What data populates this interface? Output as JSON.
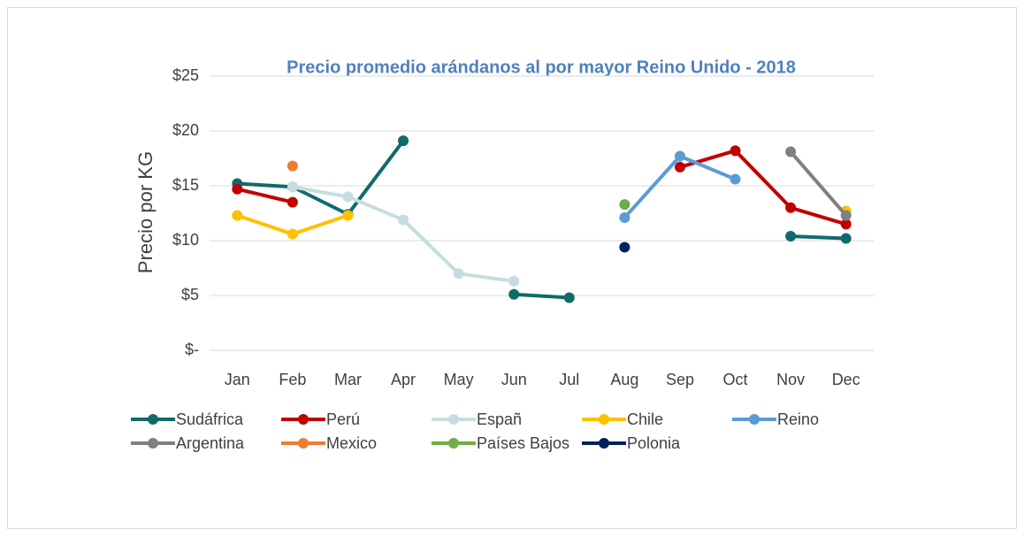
{
  "chart_data": {
    "type": "line",
    "title": "Precio promedio arándanos al por mayor Reino Unido - 2018",
    "y_label": "Precio por KG",
    "categories": [
      "Jan",
      "Feb",
      "Mar",
      "Apr",
      "May",
      "Jun",
      "Jul",
      "Aug",
      "Sep",
      "Oct",
      "Nov",
      "Dec"
    ],
    "ylim": [
      0,
      25
    ],
    "yticks": [
      {
        "value": 0,
        "label": "$-"
      },
      {
        "value": 5,
        "label": "$5"
      },
      {
        "value": 10,
        "label": "$10"
      },
      {
        "value": 15,
        "label": "$15"
      },
      {
        "value": 20,
        "label": "$20"
      },
      {
        "value": 25,
        "label": "$25"
      }
    ],
    "grid": true,
    "legend": "bottom",
    "series": [
      {
        "name": "Sudáfrica",
        "color": "#0f6b6b",
        "values": [
          15.2,
          14.9,
          12.4,
          19.1,
          null,
          5.1,
          4.8,
          null,
          null,
          null,
          10.4,
          10.2
        ]
      },
      {
        "name": "Perú",
        "color": "#c00000",
        "values": [
          14.7,
          13.5,
          null,
          null,
          null,
          null,
          null,
          null,
          16.7,
          18.2,
          13.0,
          11.5
        ]
      },
      {
        "name": "Españ",
        "color": "#c5dde0",
        "values": [
          null,
          14.9,
          14.0,
          11.9,
          7.0,
          6.3,
          null,
          null,
          null,
          null,
          null,
          null
        ]
      },
      {
        "name": "Chile",
        "color": "#ffc000",
        "values": [
          12.3,
          10.6,
          12.3,
          null,
          null,
          null,
          null,
          null,
          null,
          null,
          null,
          12.7
        ]
      },
      {
        "name": "Reino",
        "color": "#5b9bd5",
        "values": [
          null,
          null,
          null,
          null,
          null,
          null,
          null,
          12.1,
          17.7,
          15.6,
          null,
          null
        ]
      },
      {
        "name": "Argentina",
        "color": "#808080",
        "values": [
          null,
          null,
          null,
          null,
          null,
          null,
          null,
          null,
          null,
          null,
          18.1,
          12.3
        ]
      },
      {
        "name": "Mexico",
        "color": "#ed7d31",
        "values": [
          null,
          16.8,
          null,
          null,
          null,
          null,
          null,
          null,
          null,
          null,
          null,
          null
        ]
      },
      {
        "name": "Países Bajos",
        "color": "#70ad47",
        "values": [
          null,
          null,
          null,
          null,
          null,
          null,
          null,
          13.3,
          null,
          null,
          null,
          null
        ]
      },
      {
        "name": "Polonia",
        "color": "#002060",
        "values": [
          null,
          null,
          null,
          null,
          null,
          null,
          null,
          9.4,
          null,
          null,
          null,
          null
        ]
      }
    ]
  }
}
